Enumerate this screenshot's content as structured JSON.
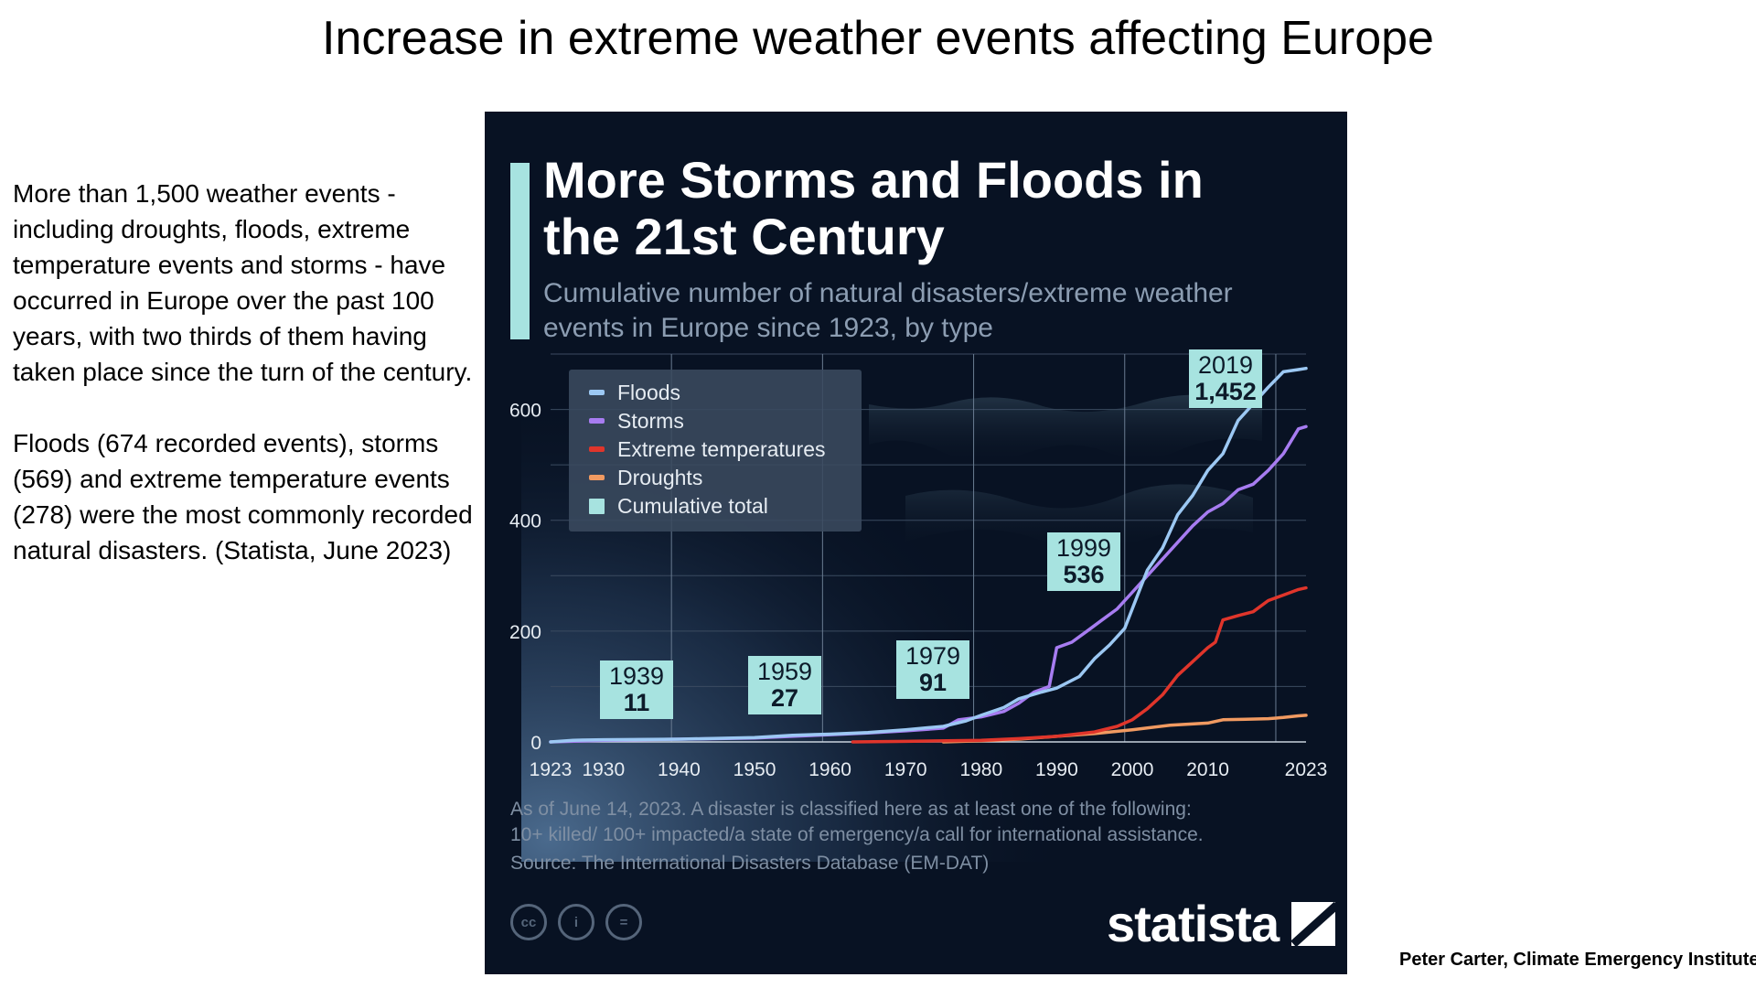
{
  "slide": {
    "title": "Increase in extreme weather events affecting Europe",
    "paragraphs": [
      "More than 1,500 weather events - including droughts, floods, extreme temperature events and storms - have occurred in Europe over the past 100 years, with two thirds of them having taken place since the turn of the century.",
      "Floods (674 recorded events), storms (569) and extreme temperature events (278) were the most commonly recorded natural disasters. (Statista, June 2023)"
    ],
    "credit": "Peter Carter, Climate Emergency Institute"
  },
  "colors": {
    "card_bg": "#081223",
    "accent": "#a7e3e0",
    "floods": "#9cc8f3",
    "storms": "#a77cf1",
    "extreme_temperatures": "#e0352b",
    "droughts": "#f19a61",
    "cumulative_total": "#a7e3e0"
  },
  "footer": {
    "note_line1": "As of June 14, 2023. A disaster is classified here as at least one of the following:",
    "note_line2": "10+ killed/ 100+ impacted/a state of emergency/a call for international assistance.",
    "source": "Source: The International Disasters Database (EM-DAT)",
    "brand": "statista",
    "icons": [
      "cc-icon",
      "attribution-icon",
      "no-derivatives-icon"
    ],
    "icon_glyphs": [
      "cc",
      "i",
      "="
    ]
  },
  "chart_data": {
    "type": "line",
    "title": "More Storms and Floods in the 21st Century",
    "subtitle": "Cumulative number of natural disasters/extreme weather events in Europe since 1923, by type",
    "xlabel": "",
    "ylabel": "",
    "xlim": [
      1923,
      2023
    ],
    "ylim": [
      0,
      700
    ],
    "x_ticks": [
      "1923",
      "1930",
      "1940",
      "1950",
      "1960",
      "1970",
      "1980",
      "1990",
      "2000",
      "2010",
      "2023"
    ],
    "x_tick_values": [
      1923,
      1930,
      1940,
      1950,
      1960,
      1970,
      1980,
      1990,
      2000,
      2010,
      2023
    ],
    "y_ticks": [
      "0",
      "200",
      "400",
      "600"
    ],
    "y_tick_values": [
      0,
      200,
      400,
      600
    ],
    "grid": true,
    "legend_position": "top-left",
    "series": [
      {
        "name": "Floods",
        "color": "#9cc8f3",
        "x": [
          1923,
          1926,
          1930,
          1940,
          1950,
          1955,
          1960,
          1965,
          1970,
          1975,
          1978,
          1980,
          1983,
          1985,
          1988,
          1990,
          1993,
          1995,
          1997,
          1999,
          2000,
          2002,
          2004,
          2006,
          2008,
          2010,
          2012,
          2014,
          2016,
          2018,
          2020,
          2022,
          2023
        ],
        "y": [
          0,
          3,
          4,
          5,
          8,
          12,
          14,
          17,
          22,
          28,
          38,
          48,
          62,
          78,
          90,
          97,
          118,
          150,
          175,
          205,
          240,
          310,
          350,
          410,
          445,
          490,
          520,
          580,
          610,
          640,
          668,
          672,
          674
        ]
      },
      {
        "name": "Storms",
        "color": "#a77cf1",
        "x": [
          1923,
          1930,
          1940,
          1950,
          1955,
          1960,
          1965,
          1970,
          1975,
          1977,
          1980,
          1983,
          1985,
          1987,
          1989,
          1990,
          1992,
          1994,
          1996,
          1998,
          2000,
          2002,
          2004,
          2006,
          2008,
          2010,
          2012,
          2014,
          2016,
          2018,
          2020,
          2022,
          2023
        ],
        "y": [
          0,
          3,
          5,
          7,
          10,
          13,
          16,
          20,
          25,
          40,
          45,
          55,
          70,
          90,
          100,
          170,
          180,
          200,
          220,
          240,
          270,
          300,
          330,
          360,
          390,
          415,
          430,
          455,
          465,
          490,
          520,
          565,
          569
        ]
      },
      {
        "name": "Extreme temperatures",
        "color": "#e0352b",
        "x": [
          1963,
          1970,
          1980,
          1985,
          1990,
          1995,
          1998,
          2000,
          2002,
          2004,
          2006,
          2008,
          2010,
          2011,
          2012,
          2014,
          2016,
          2018,
          2020,
          2022,
          2023
        ],
        "y": [
          0,
          1,
          3,
          6,
          10,
          18,
          28,
          40,
          60,
          85,
          120,
          145,
          170,
          180,
          220,
          228,
          235,
          255,
          265,
          275,
          278
        ]
      },
      {
        "name": "Droughts",
        "color": "#f19a61",
        "x": [
          1975,
          1980,
          1985,
          1990,
          1995,
          2000,
          2005,
          2010,
          2012,
          2015,
          2018,
          2020,
          2022,
          2023
        ],
        "y": [
          0,
          2,
          5,
          10,
          15,
          22,
          30,
          34,
          40,
          41,
          42,
          44,
          47,
          48
        ]
      }
    ],
    "legend": [
      {
        "name": "Floods",
        "color": "#9cc8f3",
        "shape": "line"
      },
      {
        "name": "Storms",
        "color": "#a77cf1",
        "shape": "line"
      },
      {
        "name": "Extreme temperatures",
        "color": "#e0352b",
        "shape": "line"
      },
      {
        "name": "Droughts",
        "color": "#f19a61",
        "shape": "line"
      },
      {
        "name": "Cumulative total",
        "color": "#a7e3e0",
        "shape": "square"
      }
    ],
    "cumulative_total_annotations": [
      {
        "year": "1939",
        "value": "11"
      },
      {
        "year": "1959",
        "value": "27"
      },
      {
        "year": "1979",
        "value": "91"
      },
      {
        "year": "1999",
        "value": "536"
      },
      {
        "year": "2019",
        "value": "1,452"
      }
    ]
  }
}
